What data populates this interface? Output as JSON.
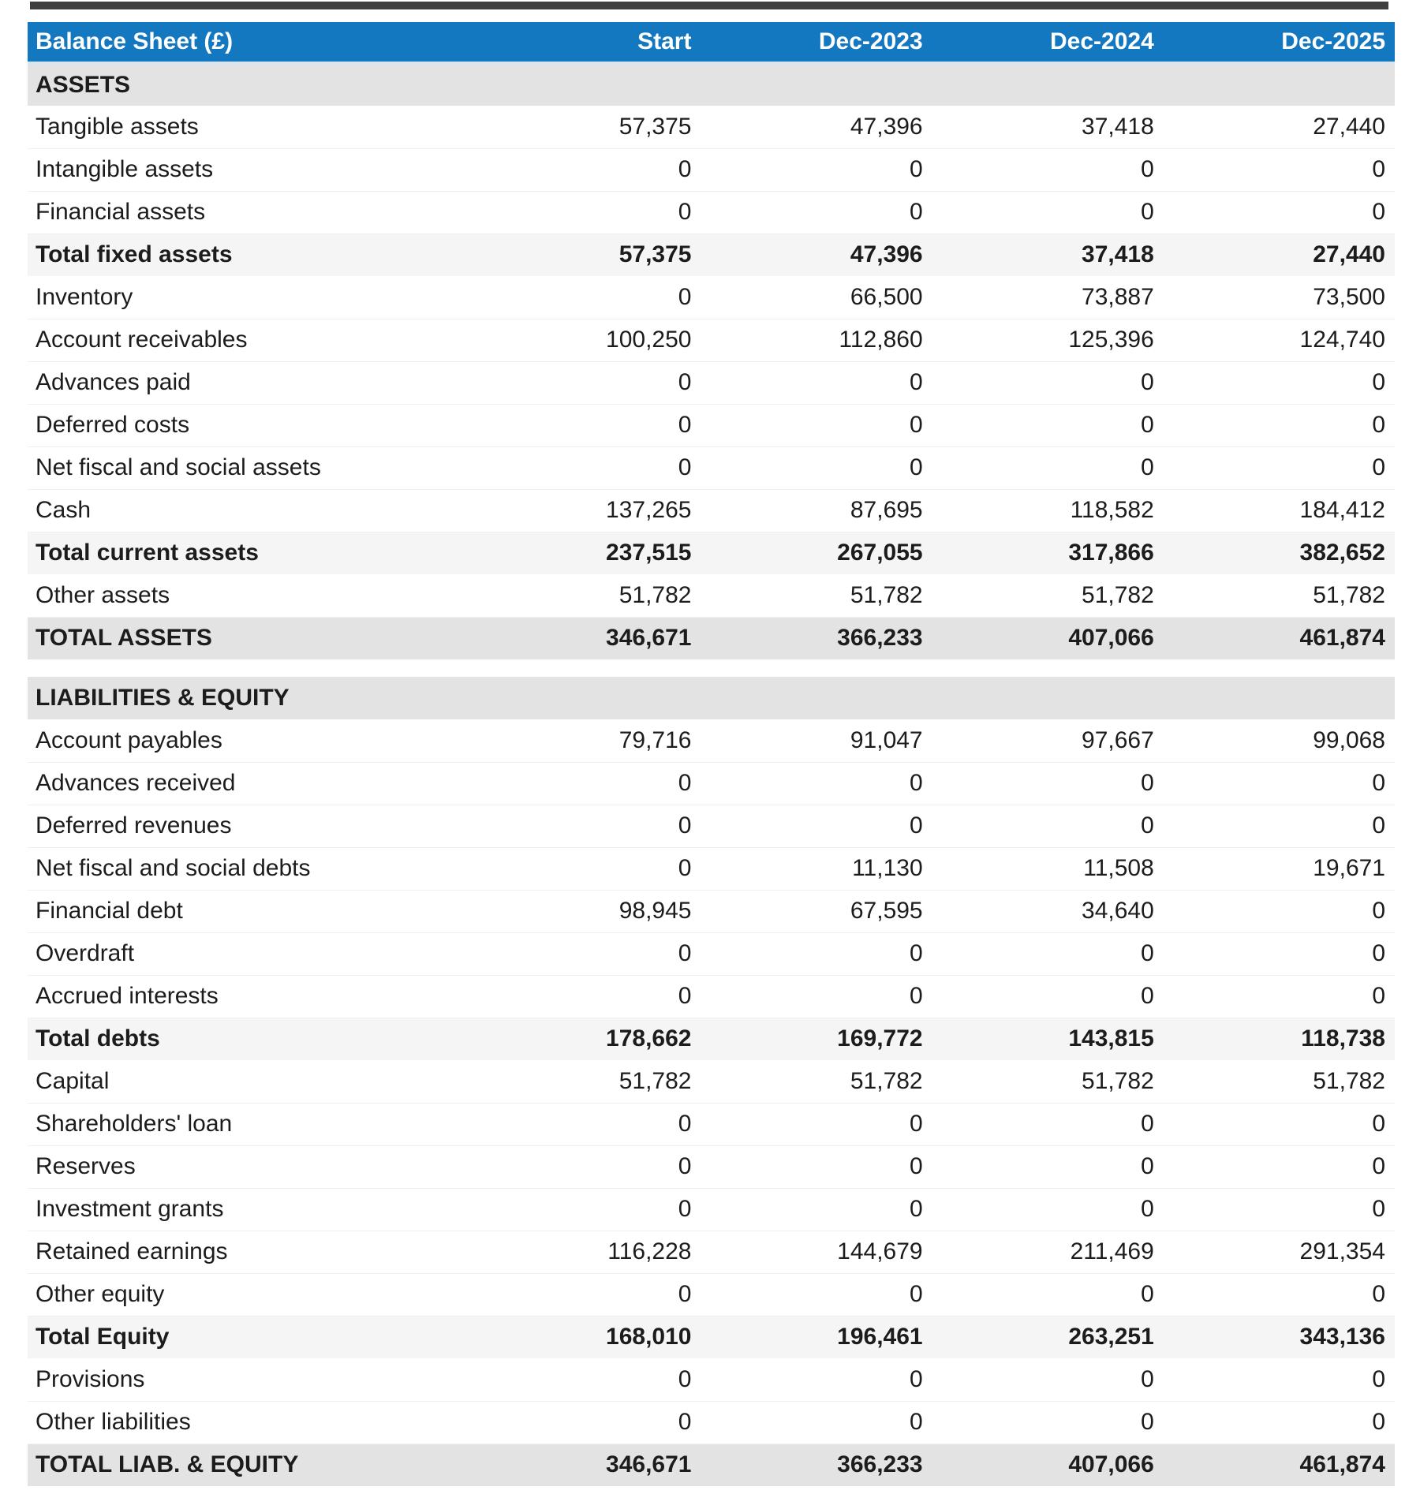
{
  "colors": {
    "header_bg": "#1478c1",
    "header_text": "#ffffff",
    "section_bg": "#e3e3e3",
    "subtotal_bg": "#f5f5f6",
    "grandtotal_bg": "#e3e3e3",
    "top_strip": "#3f3f3f"
  },
  "table": {
    "title": "Balance Sheet (£)",
    "columns": [
      "Start",
      "Dec-2023",
      "Dec-2024",
      "Dec-2025"
    ],
    "rows": [
      {
        "type": "section",
        "label": "ASSETS",
        "values": [
          "",
          "",
          "",
          ""
        ]
      },
      {
        "type": "data",
        "label": "Tangible assets",
        "values": [
          "57,375",
          "47,396",
          "37,418",
          "27,440"
        ]
      },
      {
        "type": "data",
        "label": "Intangible assets",
        "values": [
          "0",
          "0",
          "0",
          "0"
        ]
      },
      {
        "type": "data",
        "label": "Financial assets",
        "values": [
          "0",
          "0",
          "0",
          "0"
        ]
      },
      {
        "type": "subtotal",
        "label": "Total fixed assets",
        "values": [
          "57,375",
          "47,396",
          "37,418",
          "27,440"
        ]
      },
      {
        "type": "data",
        "label": "Inventory",
        "values": [
          "0",
          "66,500",
          "73,887",
          "73,500"
        ]
      },
      {
        "type": "data",
        "label": "Account receivables",
        "values": [
          "100,250",
          "112,860",
          "125,396",
          "124,740"
        ]
      },
      {
        "type": "data",
        "label": "Advances paid",
        "values": [
          "0",
          "0",
          "0",
          "0"
        ]
      },
      {
        "type": "data",
        "label": "Deferred costs",
        "values": [
          "0",
          "0",
          "0",
          "0"
        ]
      },
      {
        "type": "data",
        "label": "Net fiscal and social assets",
        "values": [
          "0",
          "0",
          "0",
          "0"
        ]
      },
      {
        "type": "data",
        "label": "Cash",
        "values": [
          "137,265",
          "87,695",
          "118,582",
          "184,412"
        ]
      },
      {
        "type": "subtotal",
        "label": "Total current assets",
        "values": [
          "237,515",
          "267,055",
          "317,866",
          "382,652"
        ]
      },
      {
        "type": "data",
        "label": "Other assets",
        "values": [
          "51,782",
          "51,782",
          "51,782",
          "51,782"
        ]
      },
      {
        "type": "grandtotal",
        "label": "TOTAL ASSETS",
        "values": [
          "346,671",
          "366,233",
          "407,066",
          "461,874"
        ]
      },
      {
        "type": "gap",
        "label": "",
        "values": []
      },
      {
        "type": "section",
        "label": "LIABILITIES & EQUITY",
        "values": [
          "",
          "",
          "",
          ""
        ]
      },
      {
        "type": "data",
        "label": "Account payables",
        "values": [
          "79,716",
          "91,047",
          "97,667",
          "99,068"
        ]
      },
      {
        "type": "data",
        "label": "Advances received",
        "values": [
          "0",
          "0",
          "0",
          "0"
        ]
      },
      {
        "type": "data",
        "label": "Deferred revenues",
        "values": [
          "0",
          "0",
          "0",
          "0"
        ]
      },
      {
        "type": "data",
        "label": "Net fiscal and social debts",
        "values": [
          "0",
          "11,130",
          "11,508",
          "19,671"
        ]
      },
      {
        "type": "data",
        "label": "Financial debt",
        "values": [
          "98,945",
          "67,595",
          "34,640",
          "0"
        ]
      },
      {
        "type": "data",
        "label": "Overdraft",
        "values": [
          "0",
          "0",
          "0",
          "0"
        ]
      },
      {
        "type": "data",
        "label": "Accrued interests",
        "values": [
          "0",
          "0",
          "0",
          "0"
        ]
      },
      {
        "type": "subtotal",
        "label": "Total debts",
        "values": [
          "178,662",
          "169,772",
          "143,815",
          "118,738"
        ]
      },
      {
        "type": "data",
        "label": "Capital",
        "values": [
          "51,782",
          "51,782",
          "51,782",
          "51,782"
        ]
      },
      {
        "type": "data",
        "label": "Shareholders' loan",
        "values": [
          "0",
          "0",
          "0",
          "0"
        ]
      },
      {
        "type": "data",
        "label": "Reserves",
        "values": [
          "0",
          "0",
          "0",
          "0"
        ]
      },
      {
        "type": "data",
        "label": "Investment grants",
        "values": [
          "0",
          "0",
          "0",
          "0"
        ]
      },
      {
        "type": "data",
        "label": "Retained earnings",
        "values": [
          "116,228",
          "144,679",
          "211,469",
          "291,354"
        ]
      },
      {
        "type": "data",
        "label": "Other equity",
        "values": [
          "0",
          "0",
          "0",
          "0"
        ]
      },
      {
        "type": "subtotal",
        "label": "Total Equity",
        "values": [
          "168,010",
          "196,461",
          "263,251",
          "343,136"
        ]
      },
      {
        "type": "data",
        "label": "Provisions",
        "values": [
          "0",
          "0",
          "0",
          "0"
        ]
      },
      {
        "type": "data",
        "label": "Other liabilities",
        "values": [
          "0",
          "0",
          "0",
          "0"
        ]
      },
      {
        "type": "grandtotal",
        "label": "TOTAL LIAB. & EQUITY",
        "values": [
          "346,671",
          "366,233",
          "407,066",
          "461,874"
        ]
      }
    ]
  }
}
